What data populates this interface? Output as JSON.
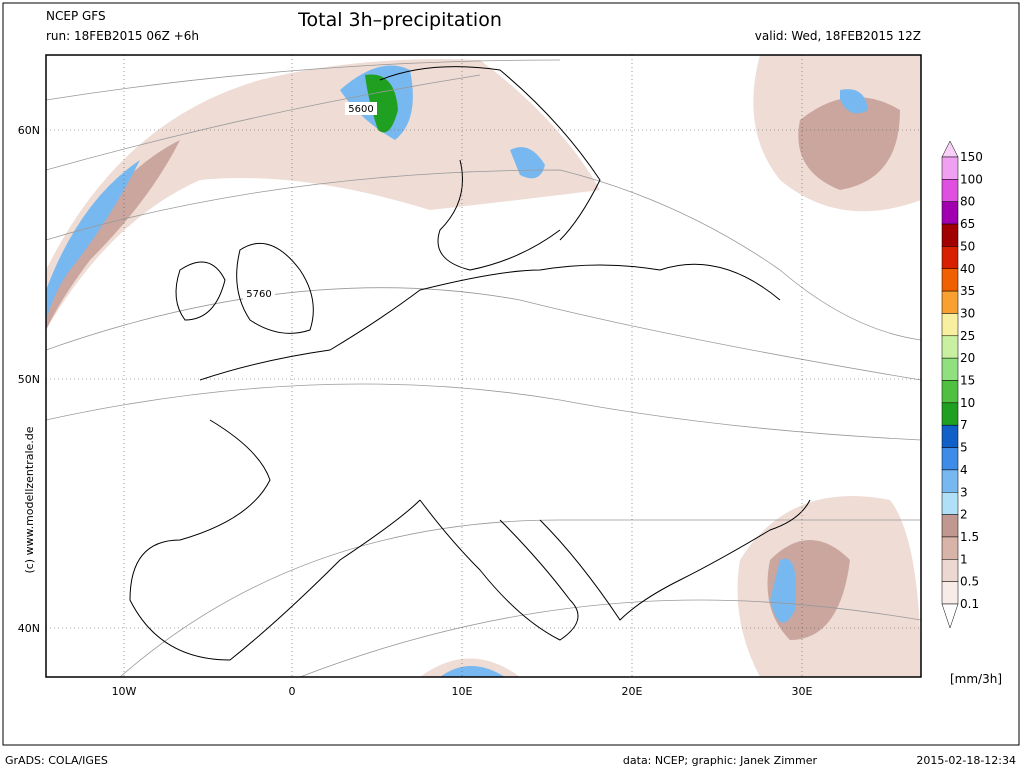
{
  "header": {
    "model": "NCEP GFS",
    "run": "run: 18FEB2015 06Z +6h",
    "title": "Total 3h–precipitation",
    "valid": "valid: Wed, 18FEB2015 12Z"
  },
  "map": {
    "lat_labels": [
      "60N",
      "50N",
      "40N"
    ],
    "lon_labels": [
      "10W",
      "0",
      "10E",
      "20E",
      "30E"
    ],
    "contour_labels": [
      "5600",
      "5760"
    ],
    "side_text": "(c) www.modellzentrale.de"
  },
  "legend": {
    "labels": [
      "150",
      "100",
      "80",
      "65",
      "50",
      "40",
      "35",
      "30",
      "25",
      "20",
      "15",
      "10",
      "7",
      "5",
      "4",
      "3",
      "2",
      "1.5",
      "1",
      "0.5",
      "0.1"
    ],
    "colors": [
      "#f8d0f8",
      "#f0a0f0",
      "#e050e0",
      "#a000b0",
      "#a00000",
      "#d82000",
      "#f06000",
      "#f8a030",
      "#f8f0a0",
      "#c8f0a0",
      "#90e080",
      "#50c040",
      "#20a020",
      "#1060c8",
      "#3c8ce8",
      "#78b8f0",
      "#b0e0f8",
      "#c09890",
      "#d8b4a8",
      "#ecd8d0",
      "#f8ece8"
    ],
    "unit": "[mm/3h]"
  },
  "footer": {
    "left": "GrADS: COLA/IGES",
    "credit": "data: NCEP; graphic: Janek Zimmer",
    "timestamp": "2015-02-18-12:34"
  }
}
